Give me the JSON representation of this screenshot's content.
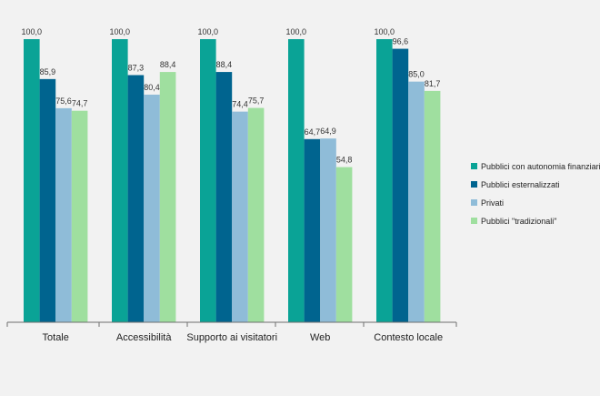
{
  "colors": {
    "background": "#f2f2f2",
    "axis": "#6f6f6f"
  },
  "chart_data": {
    "type": "bar",
    "categories": [
      "Totale",
      "Accessibilità",
      "Supporto ai visitatori",
      "Web",
      "Contesto locale"
    ],
    "series": [
      {
        "name": "Pubblici con autonomia finanziaria",
        "color": "#0aa396",
        "values": [
          100.0,
          100.0,
          100.0,
          100.0,
          100.0
        ],
        "labels": [
          "100,0",
          "100,0",
          "100,0",
          "100,0",
          "100,0"
        ]
      },
      {
        "name": "Pubblici esternalizzati",
        "color": "#00648f",
        "values": [
          85.9,
          87.3,
          88.4,
          64.7,
          96.6
        ],
        "labels": [
          "85,9",
          "87,3",
          "88,4",
          "64,7",
          "96,6"
        ]
      },
      {
        "name": "Privati",
        "color": "#8fbcd8",
        "values": [
          75.6,
          80.4,
          74.4,
          64.9,
          85.0
        ],
        "labels": [
          "75,6",
          "80,4",
          "74,4",
          "64,9",
          "85,0"
        ]
      },
      {
        "name": "Pubblici \"tradizionali\"",
        "color": "#9fdf9f",
        "values": [
          74.7,
          88.4,
          75.7,
          54.8,
          81.7
        ],
        "labels": [
          "74,7",
          "88,4",
          "75,7",
          "54,8",
          "81,7"
        ]
      }
    ],
    "ylim": [
      0,
      100
    ],
    "grid": false,
    "legend_position": "right"
  }
}
